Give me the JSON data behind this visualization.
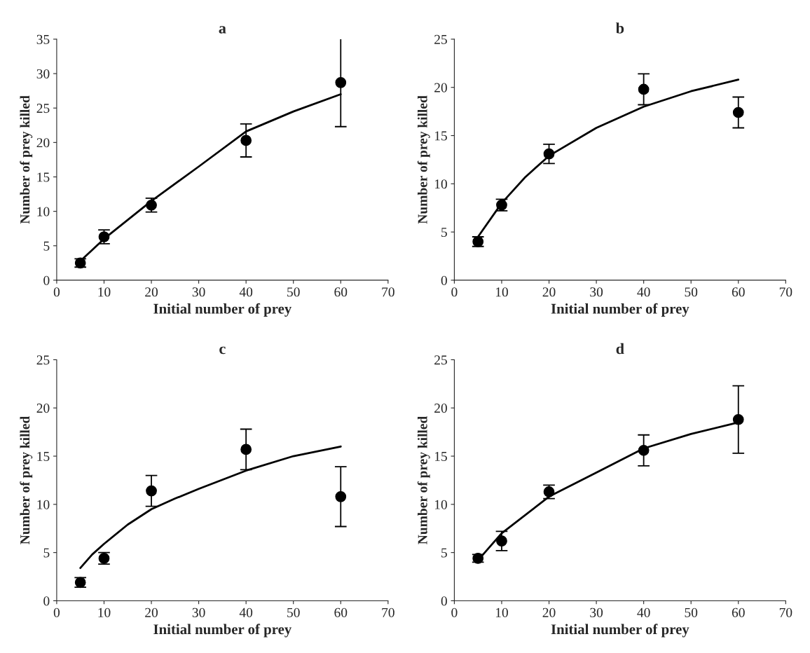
{
  "chart_data": [
    {
      "type": "scatter",
      "title": "a",
      "xlabel": "Initial number of prey",
      "ylabel": "Number of prey killed",
      "x": [
        5,
        10,
        20,
        40,
        60
      ],
      "xlim": [
        0,
        70
      ],
      "xticks": [
        0,
        10,
        20,
        30,
        40,
        50,
        60,
        70
      ],
      "ylim": [
        0,
        35
      ],
      "yticks": [
        0,
        5,
        10,
        15,
        20,
        25,
        30,
        35
      ],
      "grid": false,
      "legend": false,
      "series": [
        {
          "color": "#000000",
          "marker": "circle",
          "values": [
            2.5,
            6.3,
            10.9,
            20.3,
            28.7
          ],
          "errors": [
            0.6,
            1.0,
            1.0,
            2.4,
            6.4
          ]
        },
        {
          "type": "line",
          "color": "#000000",
          "marker": "none",
          "line_style": "solid",
          "x": [
            5,
            10,
            20,
            30,
            40,
            50,
            60
          ],
          "values": [
            2.8,
            6,
            11.5,
            16.5,
            21.6,
            24.5,
            27
          ]
        }
      ]
    },
    {
      "type": "scatter",
      "title": "b",
      "xlabel": "Initial number of prey",
      "ylabel": "Number of prey killed",
      "x": [
        5,
        10,
        20,
        40,
        60
      ],
      "xlim": [
        0,
        70
      ],
      "xticks": [
        0,
        10,
        20,
        30,
        40,
        50,
        60,
        70
      ],
      "ylim": [
        0,
        25
      ],
      "yticks": [
        0,
        5,
        10,
        15,
        20,
        25
      ],
      "grid": false,
      "legend": false,
      "series": [
        {
          "color": "#000000",
          "marker": "circle",
          "values": [
            4,
            7.8,
            13.1,
            19.8,
            17.4
          ],
          "errors": [
            0.5,
            0.6,
            1.0,
            1.6,
            1.6
          ]
        },
        {
          "type": "line",
          "color": "#000000",
          "marker": "none",
          "line_style": "solid",
          "x": [
            5,
            10,
            15,
            20,
            30,
            40,
            50,
            60
          ],
          "values": [
            4.5,
            8,
            10.7,
            12.9,
            15.8,
            18,
            19.6,
            20.8
          ]
        }
      ]
    },
    {
      "type": "scatter",
      "title": "c",
      "xlabel": "Initial number of prey",
      "ylabel": "Number of prey killed",
      "x": [
        5,
        10,
        20,
        40,
        60
      ],
      "xlim": [
        0,
        70
      ],
      "xticks": [
        0,
        10,
        20,
        30,
        40,
        50,
        60,
        70
      ],
      "ylim": [
        0,
        25
      ],
      "yticks": [
        0,
        5,
        10,
        15,
        20,
        25
      ],
      "grid": false,
      "legend": false,
      "series": [
        {
          "color": "#000000",
          "marker": "circle",
          "values": [
            1.9,
            4.4,
            11.4,
            15.7,
            10.8
          ],
          "errors": [
            0.5,
            0.6,
            1.6,
            2.1,
            3.1
          ]
        },
        {
          "type": "line",
          "color": "#000000",
          "marker": "none",
          "line_style": "solid",
          "x": [
            5,
            7.5,
            10,
            15,
            20,
            25,
            30,
            40,
            50,
            60
          ],
          "values": [
            3.4,
            4.8,
            5.9,
            7.9,
            9.5,
            10.6,
            11.6,
            13.5,
            15,
            16
          ]
        }
      ]
    },
    {
      "type": "scatter",
      "title": "d",
      "xlabel": "Initial number of prey",
      "ylabel": "Number of prey killed",
      "x": [
        5,
        10,
        20,
        40,
        60
      ],
      "xlim": [
        0,
        70
      ],
      "xticks": [
        0,
        10,
        20,
        30,
        40,
        50,
        60,
        70
      ],
      "ylim": [
        0,
        25
      ],
      "yticks": [
        0,
        5,
        10,
        15,
        20,
        25
      ],
      "grid": false,
      "legend": false,
      "series": [
        {
          "color": "#000000",
          "marker": "circle",
          "values": [
            4.4,
            6.2,
            11.3,
            15.6,
            18.8
          ],
          "errors": [
            0.4,
            1.0,
            0.7,
            1.6,
            3.5
          ]
        },
        {
          "type": "line",
          "color": "#000000",
          "marker": "none",
          "line_style": "solid",
          "x": [
            5,
            10,
            20,
            30,
            40,
            50,
            60
          ],
          "values": [
            4.2,
            7,
            10.8,
            13.3,
            15.8,
            17.3,
            18.5
          ]
        }
      ]
    }
  ]
}
